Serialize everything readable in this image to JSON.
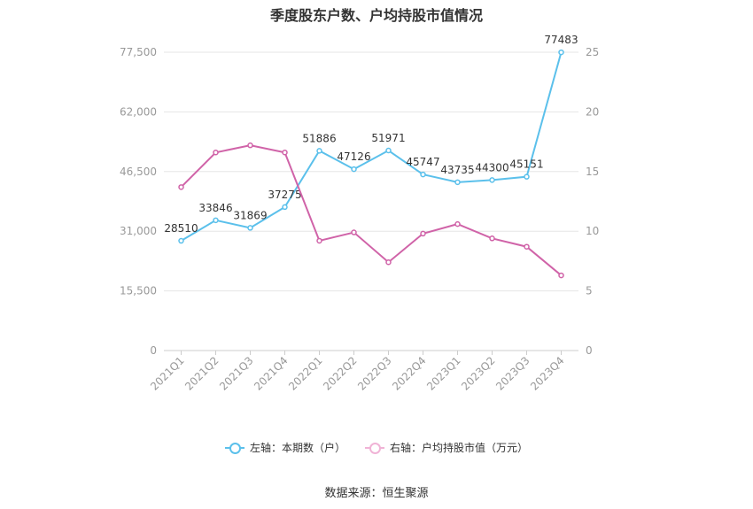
{
  "title": "季度股东户数、户均持股市值情况",
  "source": "数据来源：恒生聚源",
  "legend": {
    "left_label": "左轴：本期数（户）",
    "right_label": "右轴：户均持股市值（万元）"
  },
  "colors": {
    "left_series": "#5bc0eb",
    "right_series": "#d063a8",
    "grid": "#e6e6e6",
    "axis_text": "#999999",
    "label_text": "#333333"
  },
  "chart_data": {
    "type": "line",
    "title": "季度股东户数、户均持股市值情况",
    "categories": [
      "2021Q1",
      "2021Q2",
      "2021Q3",
      "2021Q4",
      "2022Q1",
      "2022Q2",
      "2022Q3",
      "2022Q4",
      "2023Q1",
      "2023Q2",
      "2023Q3",
      "2023Q4"
    ],
    "y_left": {
      "min": 0,
      "max": 77500,
      "ticks": [
        0,
        15500,
        31000,
        46500,
        62000,
        77500
      ],
      "tick_labels": [
        "0",
        "15,500",
        "31,000",
        "46,500",
        "62,000",
        "77,500"
      ]
    },
    "y_right": {
      "min": 0,
      "max": 25,
      "ticks": [
        0,
        5,
        10,
        15,
        20,
        25
      ],
      "tick_labels": [
        "0",
        "5",
        "10",
        "15",
        "20",
        "25"
      ]
    },
    "series": [
      {
        "name": "左轴：本期数（户）",
        "axis": "left",
        "values": [
          28510,
          33846,
          31869,
          37275,
          51886,
          47126,
          51971,
          45747,
          43735,
          44300,
          45151,
          77483
        ],
        "labels": [
          "28510",
          "33846",
          "31869",
          "37275",
          "51886",
          "47126",
          "51971",
          "45747",
          "43735",
          "44300",
          "45151",
          "77483"
        ]
      },
      {
        "name": "右轴：户均持股市值（万元）",
        "axis": "right",
        "values": [
          13.7,
          16.6,
          17.2,
          16.6,
          9.2,
          9.9,
          7.4,
          9.8,
          10.6,
          9.4,
          8.7,
          6.3
        ]
      }
    ],
    "grid": true,
    "legend_position": "bottom"
  }
}
